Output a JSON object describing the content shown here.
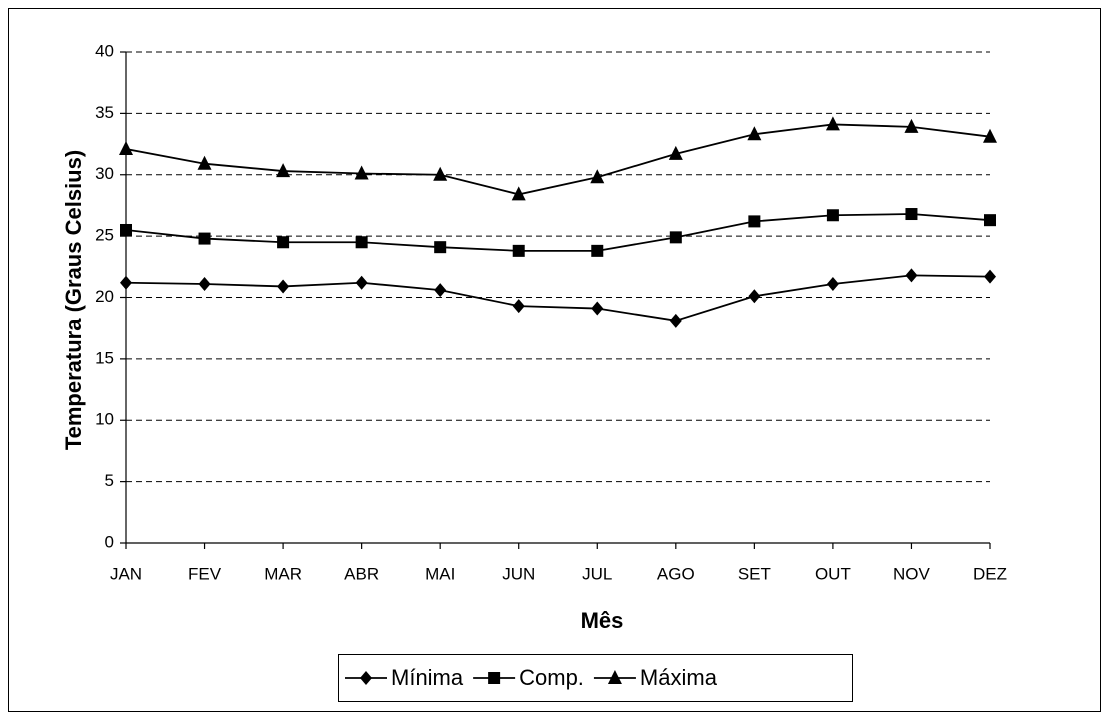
{
  "chart_data": {
    "type": "line",
    "y_label": "Temperatura (Graus Celsius)",
    "x_label": "Mês",
    "categories": [
      "JAN",
      "FEV",
      "MAR",
      "ABR",
      "MAI",
      "JUN",
      "JUL",
      "AGO",
      "SET",
      "OUT",
      "NOV",
      "DEZ"
    ],
    "series": [
      {
        "name": "Mínima",
        "color": "#000000",
        "marker": "diamond",
        "values": [
          21.2,
          21.1,
          20.9,
          21.2,
          20.6,
          19.3,
          19.1,
          18.1,
          20.1,
          21.1,
          21.8,
          21.7
        ]
      },
      {
        "name": "Comp.",
        "color": "#000000",
        "marker": "square",
        "values": [
          25.5,
          24.8,
          24.5,
          24.5,
          24.1,
          23.8,
          23.8,
          24.9,
          26.2,
          26.7,
          26.8,
          26.3
        ]
      },
      {
        "name": "Máxima",
        "color": "#000000",
        "marker": "triangle",
        "values": [
          32.1,
          30.9,
          30.3,
          30.1,
          30.0,
          28.4,
          29.8,
          31.7,
          33.3,
          34.1,
          33.9,
          33.1
        ]
      }
    ],
    "ylim": [
      0,
      40
    ],
    "yticks": [
      0,
      5,
      10,
      15,
      20,
      25,
      30,
      35,
      40
    ],
    "grid": true,
    "legend": "bottom"
  }
}
